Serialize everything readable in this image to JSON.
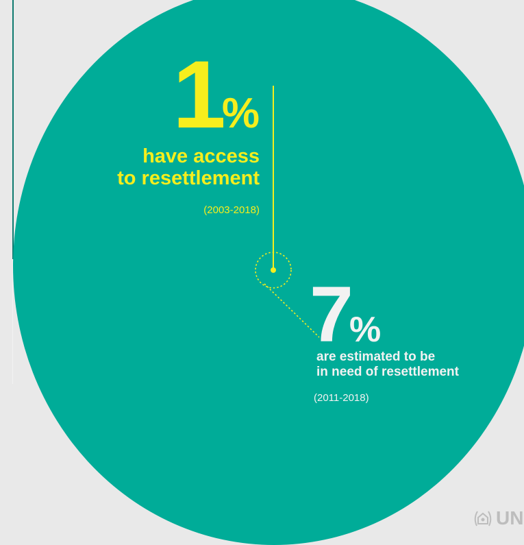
{
  "colors": {
    "background": "#e9e9e9",
    "circle": "#00ac98",
    "highlight": "#f6ee1d",
    "secondary_text": "#f2f2f2",
    "logo": "#bdbdbd"
  },
  "stat_access": {
    "digit": "1",
    "percent_sign": "%",
    "label_line1": "have access",
    "label_line2": "to resettlement",
    "years": "(2003-2018)"
  },
  "stat_need": {
    "digit": "7",
    "percent_sign": "%",
    "label_line1": "are estimated to be",
    "label_line2": "in need of resettlement",
    "years": "(2011-2018)"
  },
  "logo": {
    "icon": "unhcr-emblem-icon",
    "text": "UNH"
  }
}
